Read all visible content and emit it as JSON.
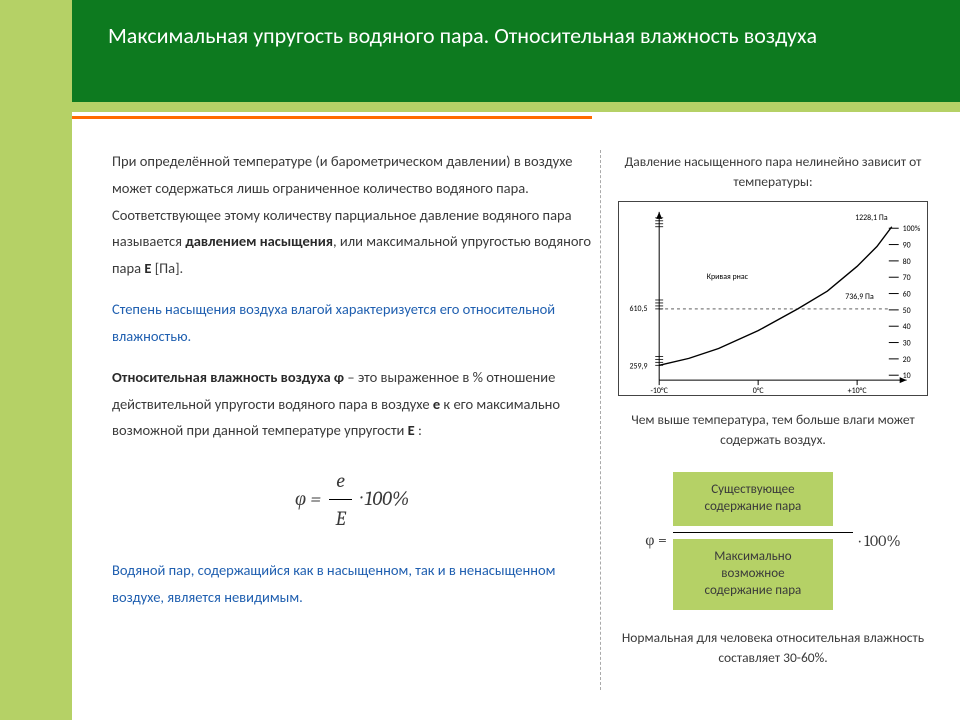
{
  "header": {
    "title": "Максимальная упругость водяного пара. Относительная влажность воздуха"
  },
  "left": {
    "p1a": "При определённой температуре (и барометрическом давлении) в воздухе может содержаться лишь ограниченное количество водяного пара. Соответствующее этому количеству парциальное давление водяного пара называется ",
    "p1b": "давлением насыщения",
    "p1c": ", или максимальной упругостью водяного пара ",
    "p1d": "Е",
    "p1e": " [Па].",
    "p2": "Степень насыщения воздуха влагой характеризуется его относительной влажностью.",
    "p3a": "Относительная влажность воздуха φ",
    "p3b": " – это выраженное в % отношение действительной упругости водяного пара в воздухе ",
    "p3c": "е",
    "p3d": " к его максимально возможной при данной температуре упругости ",
    "p3e": "Е",
    "p3f": " :",
    "formula_phi": "φ =",
    "formula_num": "e",
    "formula_den": "E",
    "formula_tail": "· 100%",
    "p4": "Водяной пар, содержащийся как в насыщенном, так и в ненасыщенном воздухе, является невидимым."
  },
  "right": {
    "cap1": "Давление насыщенного пара нелинейно зависит от температуры:",
    "cap2": "Чем выше температура, тем больше влаги может содержать воздух.",
    "phi_eq": "φ =",
    "phi_mult": "· 100%",
    "box_top": "Существующее содержание пара",
    "box_bot": "Максимально возможное содержание пара",
    "cap3": "Нормальная для человека относительная влажность составляет 30-60%."
  },
  "chart": {
    "type": "line",
    "x_ticks": [
      "-10°C",
      "0°C",
      "+10°C"
    ],
    "y_ticks_right": [
      "10",
      "20",
      "30",
      "40",
      "50",
      "60",
      "70",
      "80",
      "90",
      "100%"
    ],
    "labels": {
      "top_right": "1228,1 Па",
      "mid_left": "Кривая рнас",
      "mid_val": "610,5",
      "mid_right": "736,9 Па",
      "low_left": "259,9"
    },
    "curve_points": [
      [
        40,
        165
      ],
      [
        70,
        158
      ],
      [
        100,
        148
      ],
      [
        140,
        130
      ],
      [
        180,
        108
      ],
      [
        210,
        90
      ],
      [
        240,
        65
      ],
      [
        260,
        45
      ],
      [
        275,
        25
      ]
    ],
    "axis_color": "#000000",
    "line_color": "#000000",
    "tick_color": "#000000",
    "font_size": 8,
    "background": "#ffffff"
  }
}
